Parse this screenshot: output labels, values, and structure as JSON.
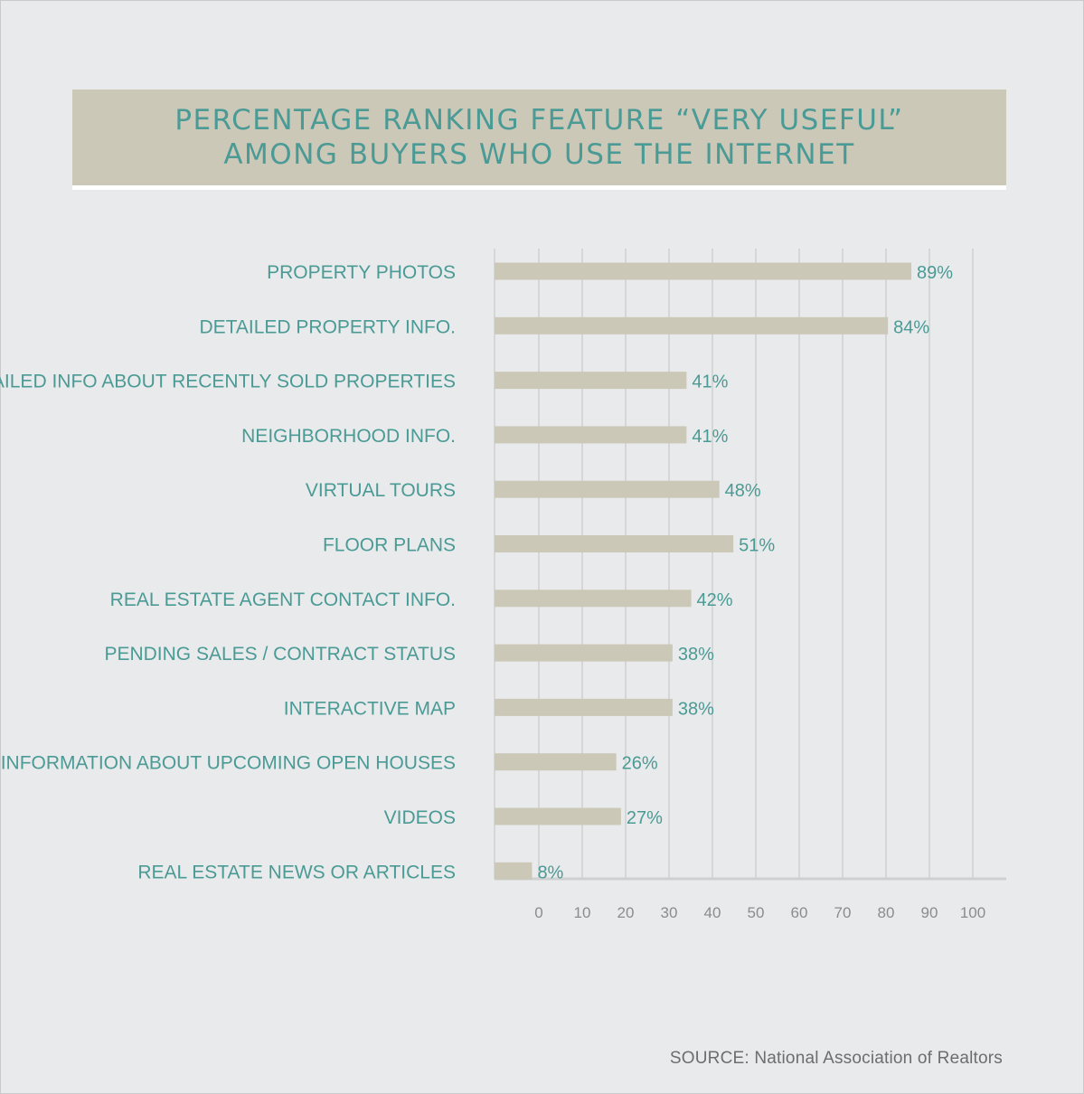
{
  "header": {
    "title_line1": "PERCENTAGE RANKING FEATURE “VERY USEFUL”",
    "title_line2": "AMONG BUYERS WHO USE THE INTERNET"
  },
  "source": "SOURCE: National Association of Realtors",
  "colors": {
    "bar": "#ccc8b8",
    "text": "#4a9a95",
    "grid": "#d6d6d6",
    "background": "#e9eaeb"
  },
  "chart_data": {
    "type": "bar",
    "orientation": "horizontal",
    "title": "PERCENTAGE RANKING FEATURE “VERY USEFUL” AMONG BUYERS WHO USE THE INTERNET",
    "categories": [
      "PROPERTY PHOTOS",
      "DETAILED PROPERTY INFO.",
      "DETAILED INFO ABOUT RECENTLY SOLD PROPERTIES",
      "NEIGHBORHOOD INFO.",
      "VIRTUAL TOURS",
      "FLOOR PLANS",
      "REAL ESTATE AGENT CONTACT INFO.",
      "PENDING SALES / CONTRACT STATUS",
      "INTERACTIVE MAP",
      "INFORMATION ABOUT UPCOMING OPEN HOUSES",
      "VIDEOS",
      "REAL ESTATE NEWS OR ARTICLES"
    ],
    "values": [
      89,
      84,
      41,
      41,
      48,
      51,
      42,
      38,
      38,
      26,
      27,
      8
    ],
    "value_labels": [
      "89%",
      "84%",
      "41%",
      "41%",
      "48%",
      "51%",
      "42%",
      "38%",
      "38%",
      "26%",
      "27%",
      "8%"
    ],
    "xticks": [
      "0",
      "10",
      "20",
      "30",
      "40",
      "50",
      "60",
      "70",
      "80",
      "90",
      "100"
    ],
    "xlim": [
      0,
      100
    ],
    "grid": true
  }
}
